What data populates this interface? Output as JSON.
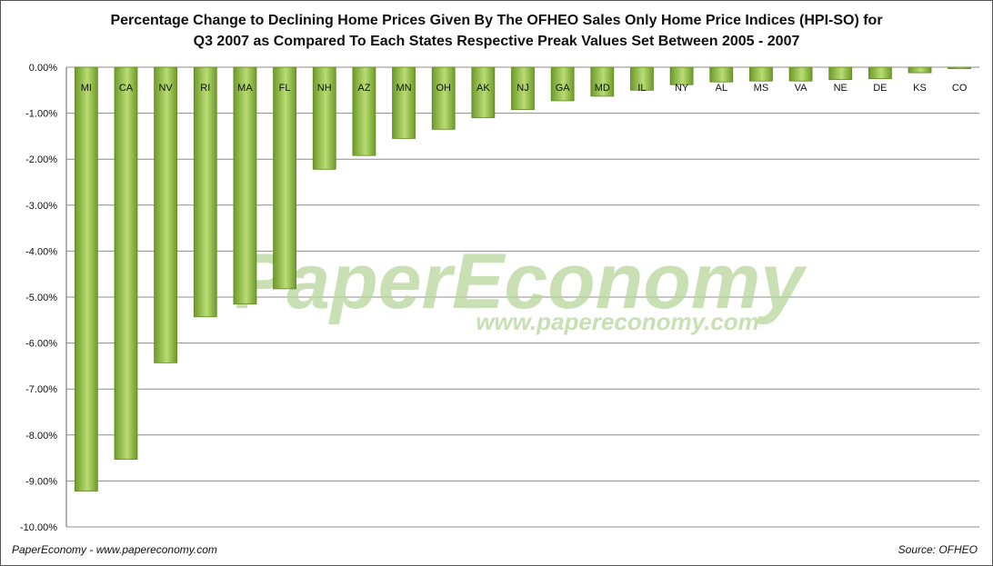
{
  "title_line1": "Percentage Change to Declining Home Prices Given By The OFHEO Sales Only Home Price Indices (HPI-SO) for",
  "title_line2": "Q3 2007 as Compared To Each States Respective Preak Values Set Between 2005 - 2007",
  "watermark": {
    "main": "PaperEconomy",
    "url": "www.papereconomy.com",
    "color": "#b5d59a"
  },
  "footer_left": "PaperEconomy - www.papereconomy.com",
  "footer_right": "Source: OFHEO",
  "colors": {
    "bar_dark": "#6e9a2a",
    "bar_light": "#b9dc74",
    "grid": "#8c8c8c",
    "tick_text": "#111111"
  },
  "chart_data": {
    "type": "bar",
    "title": "Percentage Change to Declining Home Prices Given By The OFHEO Sales Only Home Price Indices (HPI-SO) for Q3 2007 as Compared To Each States Respective Preak Values Set Between 2005 - 2007",
    "categories": [
      "MI",
      "CA",
      "NV",
      "RI",
      "MA",
      "FL",
      "NH",
      "AZ",
      "MN",
      "OH",
      "AK",
      "NJ",
      "GA",
      "MD",
      "IL",
      "NY",
      "AL",
      "MS",
      "VA",
      "NE",
      "DE",
      "KS",
      "CO"
    ],
    "values": [
      -9.22,
      -8.53,
      -6.43,
      -5.43,
      -5.15,
      -4.82,
      -2.22,
      -1.92,
      -1.55,
      -1.35,
      -1.1,
      -0.92,
      -0.73,
      -0.63,
      -0.5,
      -0.38,
      -0.32,
      -0.3,
      -0.3,
      -0.27,
      -0.25,
      -0.12,
      -0.03
    ],
    "ylim": [
      -10,
      0
    ],
    "yticks": [
      "0.00%",
      "-1.00%",
      "-2.00%",
      "-3.00%",
      "-4.00%",
      "-5.00%",
      "-6.00%",
      "-7.00%",
      "-8.00%",
      "-9.00%",
      "-10.00%"
    ],
    "grid": true,
    "category_labels_position": "top"
  }
}
